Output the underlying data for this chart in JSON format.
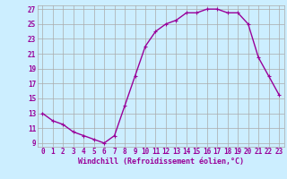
{
  "x": [
    0,
    1,
    2,
    3,
    4,
    5,
    6,
    7,
    8,
    9,
    10,
    11,
    12,
    13,
    14,
    15,
    16,
    17,
    18,
    19,
    20,
    21,
    22,
    23
  ],
  "y": [
    13,
    12,
    11.5,
    10.5,
    10,
    9.5,
    9,
    10,
    14,
    18,
    22,
    24,
    25,
    25.5,
    26.5,
    26.5,
    27,
    27,
    26.5,
    26.5,
    25,
    20.5,
    18,
    15.5
  ],
  "line_color": "#990099",
  "marker": "+",
  "marker_size": 3,
  "xlabel": "Windchill (Refroidissement éolien,°C)",
  "xlim": [
    -0.5,
    23.5
  ],
  "ylim": [
    8.5,
    27.5
  ],
  "yticks": [
    9,
    11,
    13,
    15,
    17,
    19,
    21,
    23,
    25,
    27
  ],
  "xticks": [
    0,
    1,
    2,
    3,
    4,
    5,
    6,
    7,
    8,
    9,
    10,
    11,
    12,
    13,
    14,
    15,
    16,
    17,
    18,
    19,
    20,
    21,
    22,
    23
  ],
  "background_color": "#cceeff",
  "grid_color": "#aaaaaa",
  "xlabel_fontsize": 6,
  "tick_fontsize": 5.5,
  "line_width": 1.0
}
